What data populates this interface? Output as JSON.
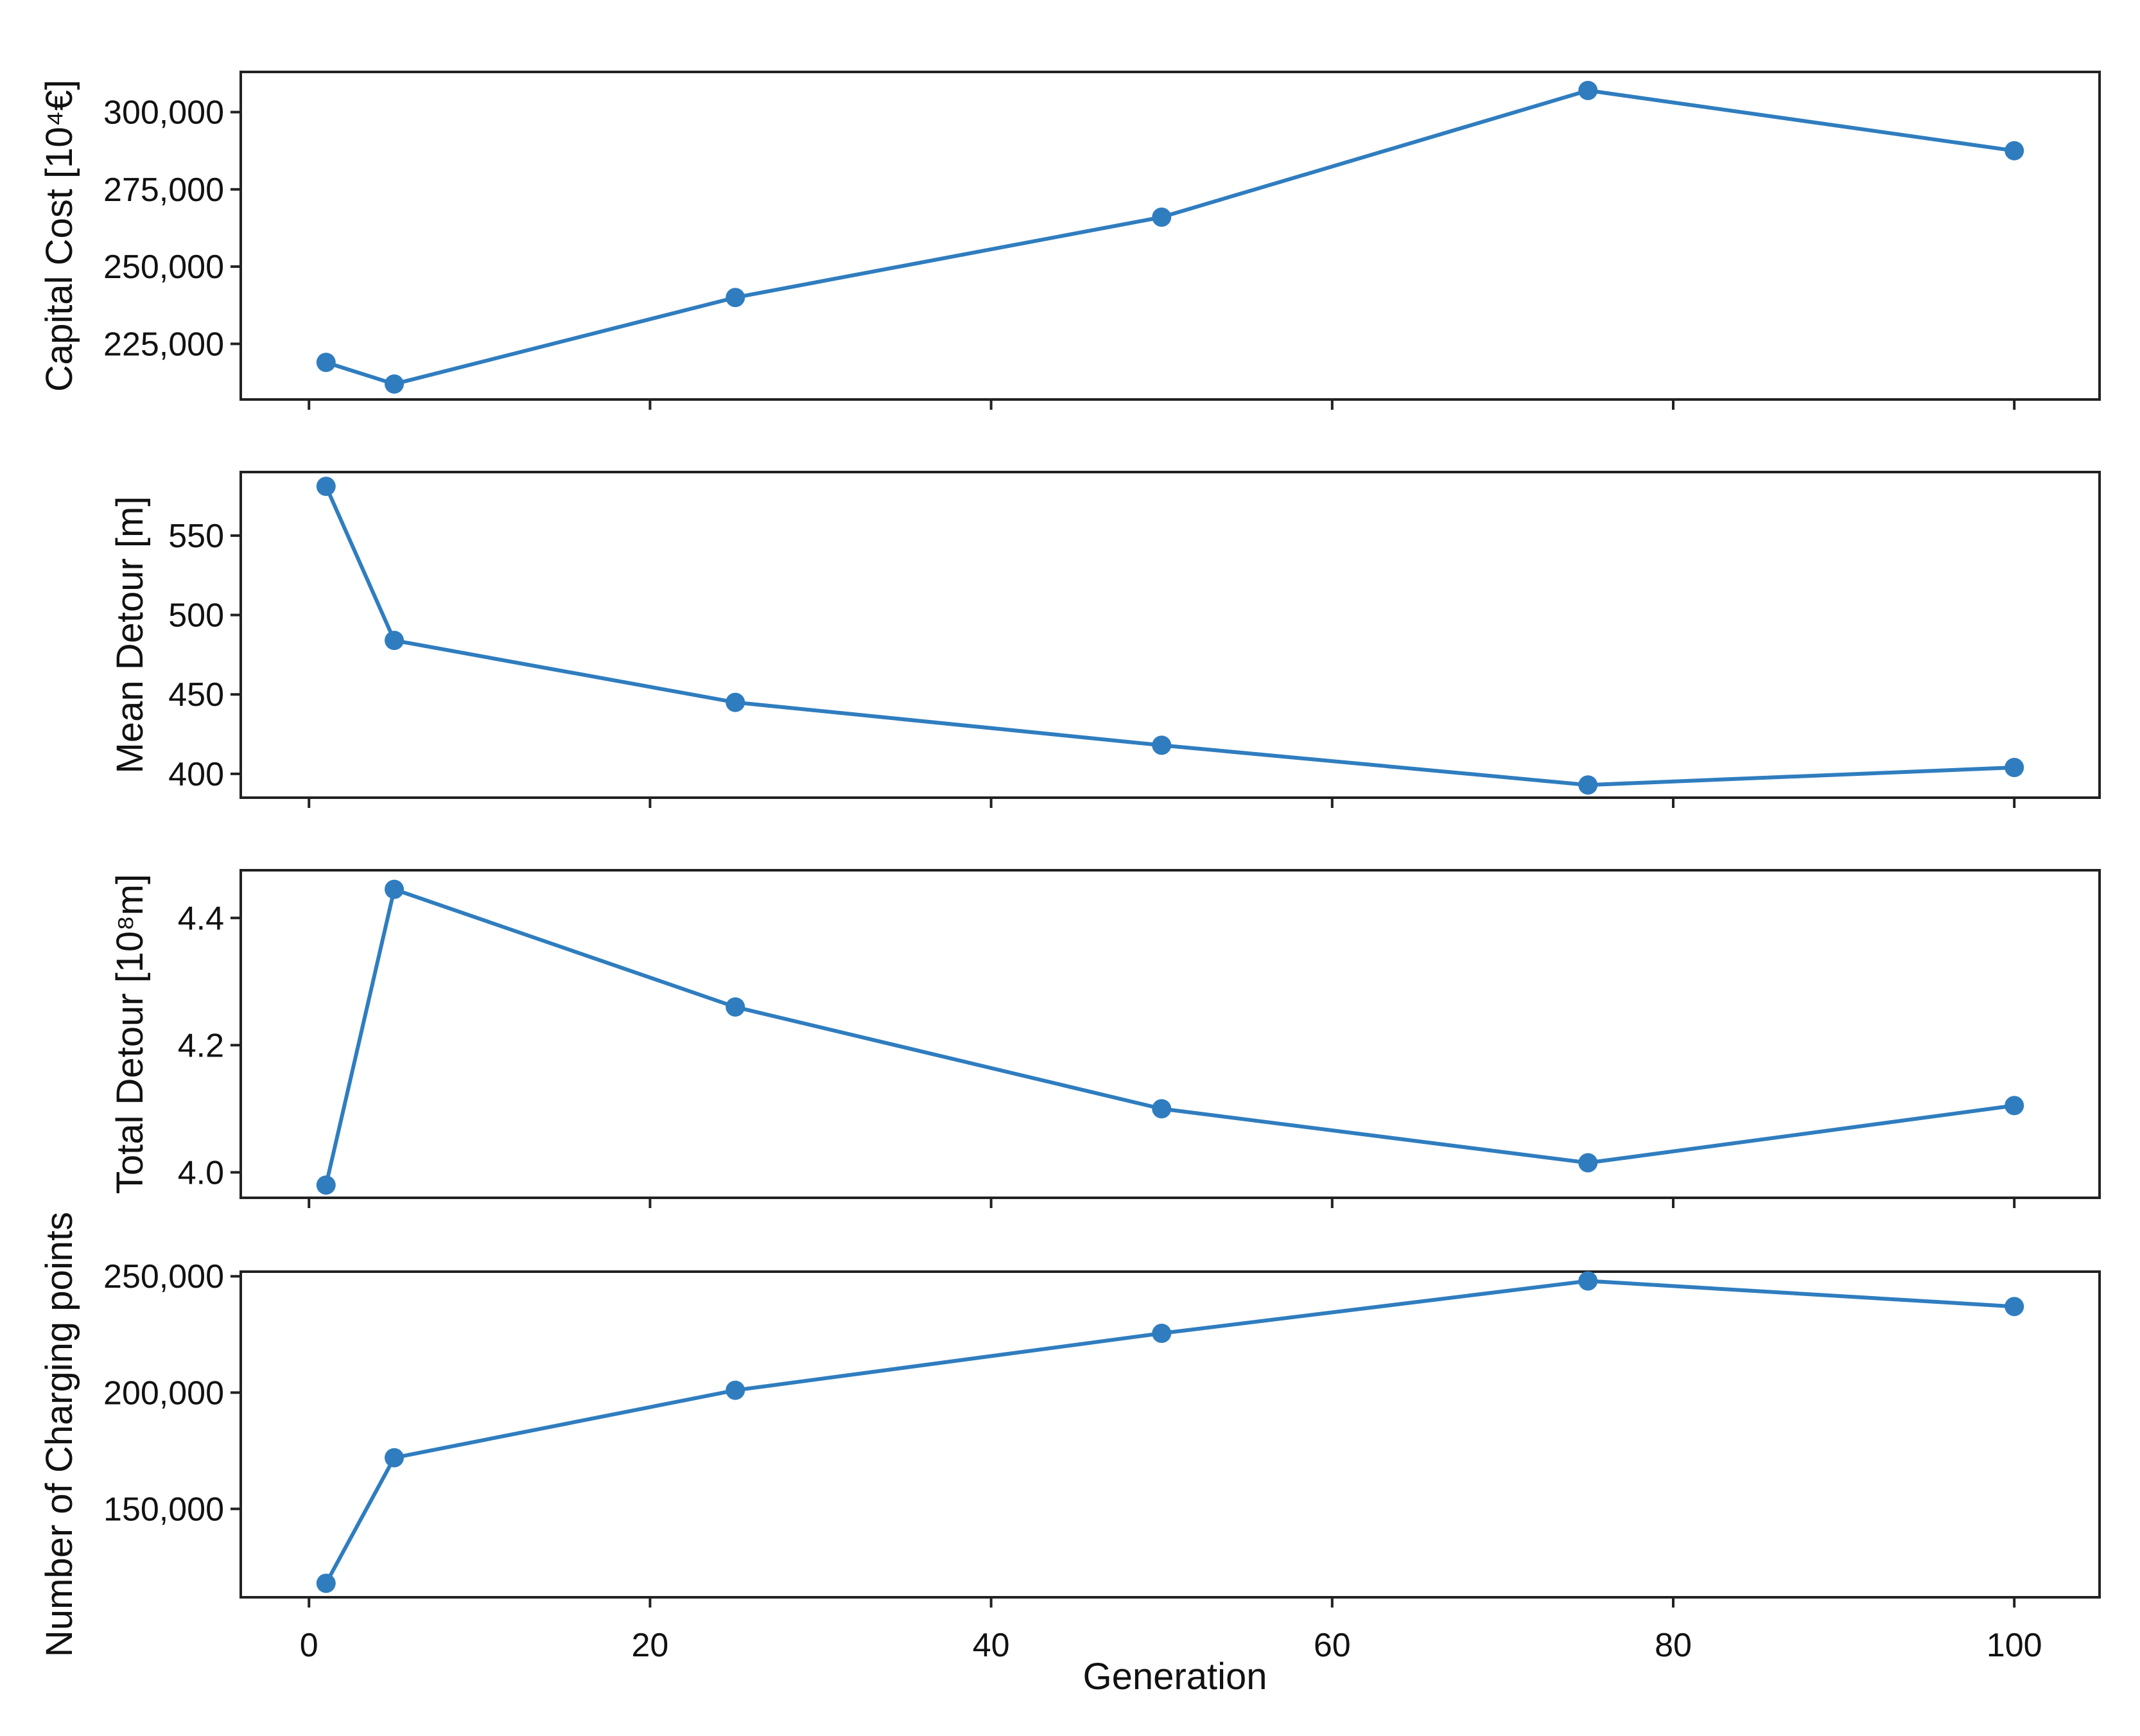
{
  "colors": {
    "series": "#2f7dbf",
    "frame": "#222222",
    "background": "#ffffff"
  },
  "xaxis": {
    "label": "Generation",
    "ticks": [
      0,
      20,
      40,
      60,
      80,
      100
    ],
    "tick_labels": [
      "0",
      "20",
      "40",
      "60",
      "80",
      "100"
    ],
    "range": [
      -4,
      105
    ]
  },
  "chart_data": [
    {
      "type": "line",
      "title": "",
      "ylabel": "Capital Cost [10⁴€]",
      "xlabel": "",
      "x": [
        1,
        5,
        25,
        50,
        75,
        100
      ],
      "values": [
        219000,
        212000,
        240000,
        266000,
        307000,
        287500
      ],
      "ylim": [
        207000,
        313000
      ],
      "yticks": [
        225000,
        250000,
        275000,
        300000
      ],
      "ytick_labels": [
        "225,000",
        "250,000",
        "275,000",
        "300,000"
      ],
      "grid": false,
      "legend": "none",
      "marker": "circle"
    },
    {
      "type": "line",
      "title": "",
      "ylabel": "Mean Detour [m]",
      "xlabel": "",
      "x": [
        1,
        5,
        25,
        50,
        75,
        100
      ],
      "values": [
        581,
        484,
        445,
        418,
        393,
        404
      ],
      "ylim": [
        385,
        590
      ],
      "yticks": [
        400,
        450,
        500,
        550
      ],
      "ytick_labels": [
        "400",
        "450",
        "500",
        "550"
      ],
      "grid": false,
      "legend": "none",
      "marker": "circle"
    },
    {
      "type": "line",
      "title": "",
      "ylabel": "Total Detour [10⁸m]",
      "xlabel": "",
      "x": [
        1,
        5,
        25,
        50,
        75,
        100
      ],
      "values": [
        3.98,
        4.445,
        4.26,
        4.1,
        4.015,
        4.105
      ],
      "ylim": [
        3.96,
        4.475
      ],
      "yticks": [
        4.0,
        4.2,
        4.4
      ],
      "ytick_labels": [
        "4.0",
        "4.2",
        "4.4"
      ],
      "grid": false,
      "legend": "none",
      "marker": "circle"
    },
    {
      "type": "line",
      "title": "",
      "ylabel": "Number of Charging points",
      "xlabel": "Generation",
      "x": [
        1,
        5,
        25,
        50,
        75,
        100
      ],
      "values": [
        118000,
        172000,
        201000,
        225500,
        248000,
        237000
      ],
      "ylim": [
        112000,
        252000
      ],
      "yticks": [
        150000,
        200000,
        250000
      ],
      "ytick_labels": [
        "150,000",
        "200,000",
        "250,000"
      ],
      "grid": false,
      "legend": "none",
      "marker": "circle"
    }
  ]
}
